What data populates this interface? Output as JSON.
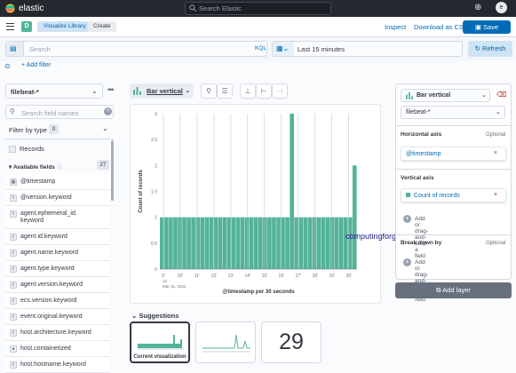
{
  "top": {
    "brand": "elastic",
    "search_placeholder": "Search Elastic"
  },
  "nav": {
    "space_badge": "D",
    "breadcrumbs": [
      "Visualize Library",
      "Create"
    ],
    "inspect": "Inspect",
    "download": "Download as CSV",
    "save": "Save"
  },
  "query": {
    "placeholder": "Search",
    "language": "KQL",
    "time_range": "Last 15 minutes",
    "refresh": "Refresh",
    "add_filter": "+ Add filter"
  },
  "fields_panel": {
    "index_pattern": "filebeat-*",
    "search_placeholder": "Search field names",
    "filter_by_type": "Filter by type",
    "filter_count": "0",
    "records": "Records",
    "available_fields": "Available fields",
    "available_count": "27",
    "fields": [
      {
        "type": "cal",
        "name": "@timestamp"
      },
      {
        "type": "t",
        "name": "@version.keyword"
      },
      {
        "type": "t",
        "name": "agent.ephemeral_id.\nkeyword"
      },
      {
        "type": "t",
        "name": "agent.id.keyword"
      },
      {
        "type": "t",
        "name": "agent.name.keyword"
      },
      {
        "type": "t",
        "name": "agent.type.keyword"
      },
      {
        "type": "t",
        "name": "agent.version.keyword"
      },
      {
        "type": "t",
        "name": "ecs.version.keyword"
      },
      {
        "type": "t",
        "name": "event.original.keyword"
      },
      {
        "type": "t",
        "name": "host.architecture.keyword"
      },
      {
        "type": "b",
        "name": "host.containerized"
      },
      {
        "type": "t",
        "name": "host.hostname.keyword"
      }
    ]
  },
  "workspace": {
    "vis_type": "Bar vertical",
    "watermark": "computingforgeeks.com",
    "suggestions_title": "Suggestions",
    "suggestion_current": "Current visualization",
    "suggestion_metric": "29"
  },
  "config_panel": {
    "vis_type": "Bar vertical",
    "index_pattern": "filebeat-*",
    "horizontal_axis": "Horizontal axis",
    "optional": "Optional",
    "h_field": "@timestamp",
    "vertical_axis": "Vertical axis",
    "v_field": "Count of records",
    "add_field": "Add or drag-and-drop a field",
    "break_down_by": "Break down by",
    "add_layer": "Add layer"
  },
  "chart_data": {
    "type": "bar",
    "xlabel": "@timestamp per 30 seconds",
    "ylabel": "Count of records",
    "ylim": [
      0,
      3
    ],
    "yticks": [
      "0",
      "0.5",
      "1",
      "1.5",
      "2",
      "2.5",
      "3"
    ],
    "xticks": [
      "9'",
      "10'",
      "11'",
      "12'",
      "13'",
      "14'",
      "15'",
      "16'",
      "17'",
      "18'",
      "19'",
      "20'"
    ],
    "x_sub": "12\nMar 31, 2022",
    "values": [
      1,
      1,
      1,
      1,
      1,
      1,
      1,
      1,
      1,
      1,
      1,
      1,
      1,
      1,
      1,
      1,
      1,
      1,
      1,
      1,
      1,
      1,
      1,
      1,
      1,
      1,
      1,
      1,
      1,
      3,
      1,
      1,
      1,
      1,
      1,
      1,
      1,
      1,
      1,
      1,
      1,
      1,
      1,
      2
    ],
    "color": "#54b399"
  }
}
